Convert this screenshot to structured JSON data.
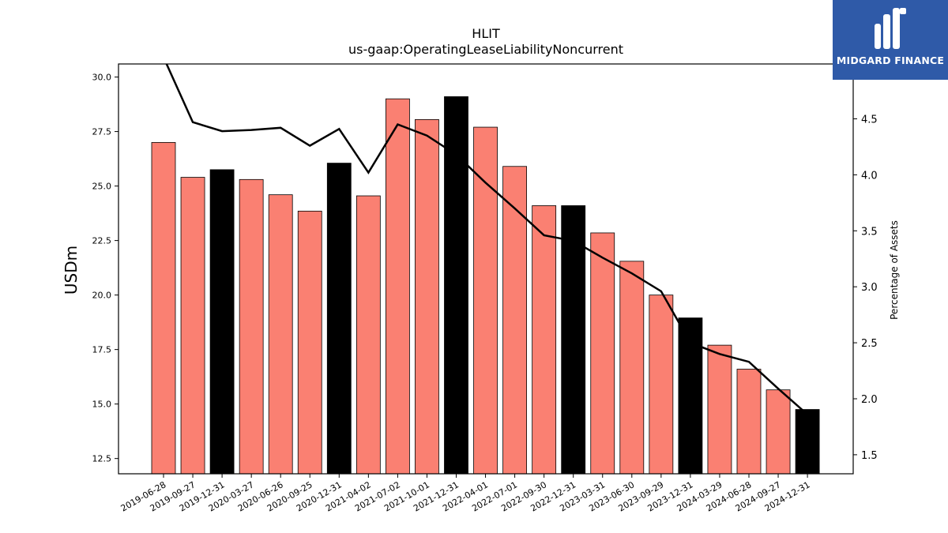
{
  "brand": {
    "name": "MIDGARD FINANCE",
    "bg_color": "#2f5aa8"
  },
  "chart_data": {
    "type": "bar",
    "title": "HLIT",
    "subtitle": "us-gaap:OperatingLeaseLiabilityNoncurrent",
    "ylabel": "USDm",
    "y2label": "Percentage of Assets",
    "ylim": [
      11.8,
      30.6
    ],
    "y2lim": [
      1.33,
      4.99
    ],
    "yticks": [
      "12.5",
      "15.0",
      "17.5",
      "20.0",
      "22.5",
      "25.0",
      "27.5",
      "30.0"
    ],
    "y2ticks": [
      "1.5",
      "2.0",
      "2.5",
      "3.0",
      "3.5",
      "4.0",
      "4.5"
    ],
    "categories": [
      "2019-06-28",
      "2019-09-27",
      "2019-12-31",
      "2020-03-27",
      "2020-06-26",
      "2020-09-25",
      "2020-12-31",
      "2021-04-02",
      "2021-07-02",
      "2021-10-01",
      "2021-12-31",
      "2022-04-01",
      "2022-07-01",
      "2022-09-30",
      "2022-12-31",
      "2023-03-31",
      "2023-06-30",
      "2023-09-29",
      "2023-12-31",
      "2024-03-29",
      "2024-06-28",
      "2024-09-27",
      "2024-12-31"
    ],
    "series": [
      {
        "kind": "bar",
        "values": [
          27.0,
          25.4,
          25.75,
          25.3,
          24.6,
          23.85,
          26.05,
          24.55,
          29.0,
          28.05,
          29.1,
          27.7,
          25.9,
          24.1,
          24.1,
          22.85,
          21.55,
          20.0,
          18.95,
          17.7,
          16.6,
          15.65,
          14.75
        ],
        "colors": [
          "#fa8072",
          "#fa8072",
          "#000000",
          "#fa8072",
          "#fa8072",
          "#fa8072",
          "#000000",
          "#fa8072",
          "#fa8072",
          "#fa8072",
          "#000000",
          "#fa8072",
          "#fa8072",
          "#fa8072",
          "#000000",
          "#fa8072",
          "#fa8072",
          "#fa8072",
          "#000000",
          "#fa8072",
          "#fa8072",
          "#fa8072",
          "#000000"
        ]
      },
      {
        "kind": "line",
        "axis": "right",
        "color": "#000000",
        "values": [
          5.05,
          4.47,
          4.39,
          4.4,
          4.42,
          4.26,
          4.41,
          4.02,
          4.45,
          4.35,
          4.18,
          3.93,
          3.7,
          3.46,
          3.41,
          3.26,
          3.12,
          2.96,
          2.5,
          2.4,
          2.33,
          2.09,
          1.86
        ]
      }
    ],
    "grid": false
  }
}
